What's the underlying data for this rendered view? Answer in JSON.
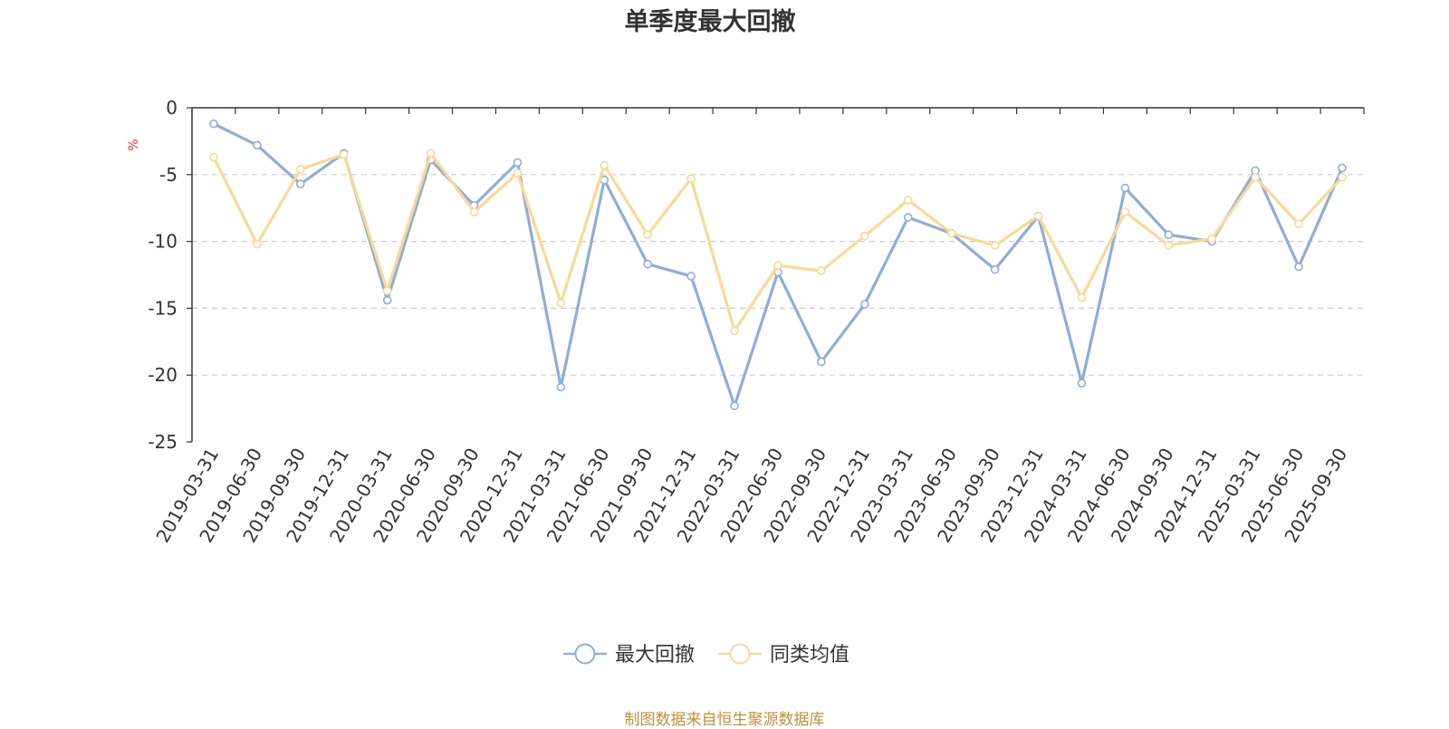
{
  "chart_data": {
    "type": "line",
    "title": "单季度最大回撤",
    "ylabel": "%",
    "xlabel": "",
    "ylim": [
      -25,
      0
    ],
    "yticks": [
      0,
      -5,
      -10,
      -15,
      -20,
      -25
    ],
    "grid": true,
    "legend_position": "bottom-center",
    "categories": [
      "2019-03-31",
      "2019-06-30",
      "2019-09-30",
      "2019-12-31",
      "2020-03-31",
      "2020-06-30",
      "2020-09-30",
      "2020-12-31",
      "2021-03-31",
      "2021-06-30",
      "2021-09-30",
      "2021-12-31",
      "2022-03-31",
      "2022-06-30",
      "2022-09-30",
      "2022-12-31",
      "2023-03-31",
      "2023-06-30",
      "2023-09-30",
      "2023-12-31",
      "2024-03-31",
      "2024-06-30",
      "2024-09-30",
      "2024-12-31",
      "2025-03-31",
      "2025-06-30",
      "2025-09-30"
    ],
    "series": [
      {
        "name": "最大回撤",
        "color": "#8eadd9",
        "values": [
          -1.2,
          -2.8,
          -5.7,
          -3.4,
          -14.4,
          -3.9,
          -7.3,
          -4.1,
          -20.9,
          -5.4,
          -11.7,
          -12.6,
          -22.3,
          -12.3,
          -19.0,
          -14.7,
          -8.2,
          -9.4,
          -12.1,
          -8.1,
          -20.6,
          -6.0,
          -9.5,
          -10.0,
          -4.7,
          -11.9,
          -4.5
        ]
      },
      {
        "name": "同类均值",
        "color": "#fbd896",
        "values": [
          -3.7,
          -10.2,
          -4.6,
          -3.5,
          -13.7,
          -3.4,
          -7.8,
          -4.9,
          -14.6,
          -4.3,
          -9.5,
          -5.3,
          -16.7,
          -11.8,
          -12.2,
          -9.6,
          -6.9,
          -9.4,
          -10.3,
          -8.1,
          -14.2,
          -7.8,
          -10.3,
          -9.8,
          -5.2,
          -8.7,
          -5.2
        ]
      }
    ]
  },
  "footer": "制图数据来自恒生聚源数据库"
}
